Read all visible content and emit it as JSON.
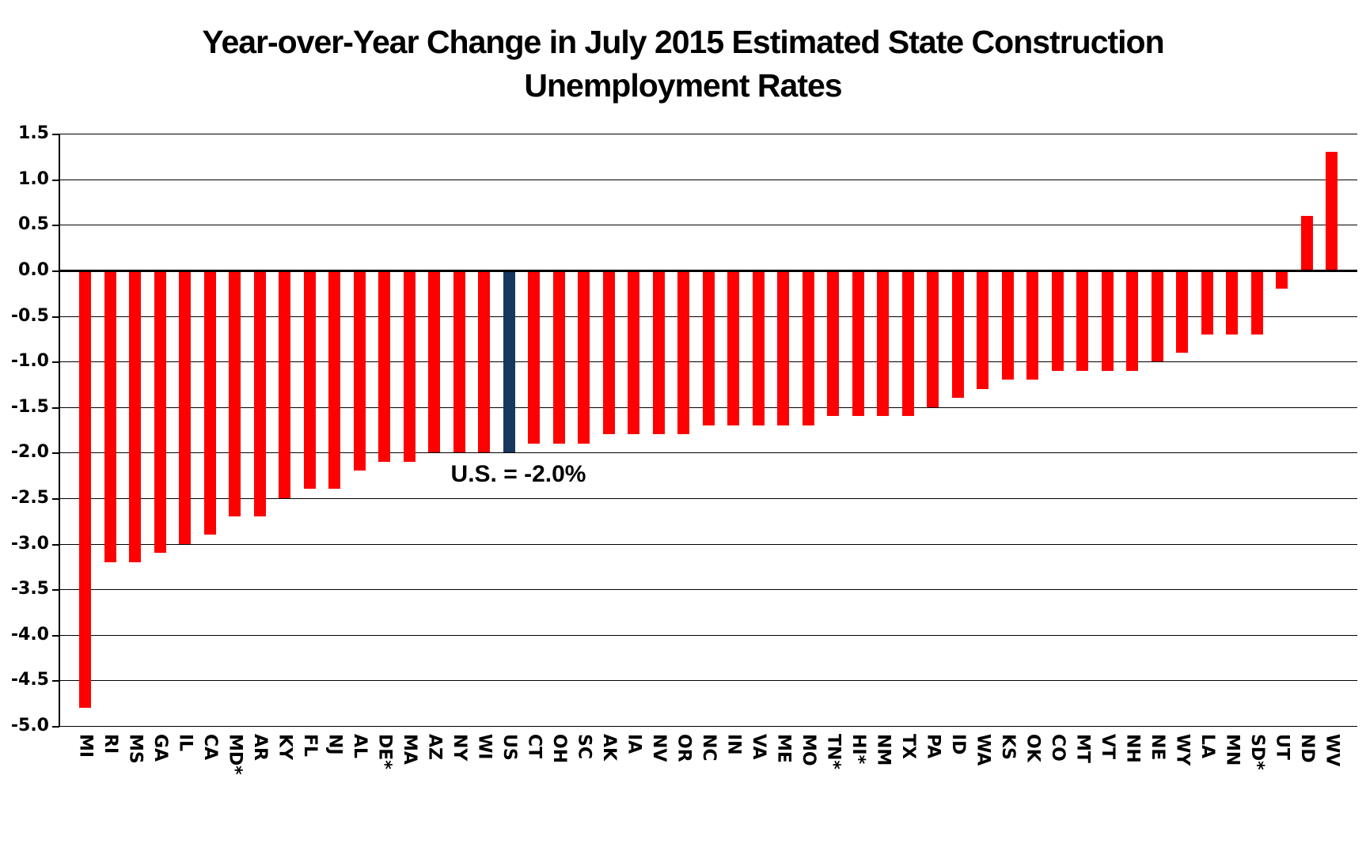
{
  "title": {
    "line1": "Year-over-Year Change in July 2015 Estimated State Construction",
    "line2": "Unemployment Rates"
  },
  "colors": {
    "bar": "#FF0000",
    "highlight_bar": "#17375E",
    "grid": "#000000",
    "axis": "#000000",
    "background": "#FFFFFF",
    "text": "#000000"
  },
  "chart_data": {
    "type": "bar",
    "title": "Year-over-Year Change in July 2015 Estimated State Construction Unemployment Rates",
    "categories": [
      "MI",
      "RI",
      "MS",
      "GA",
      "IL",
      "CA",
      "MD*",
      "AR",
      "KY",
      "FL",
      "NJ",
      "AL",
      "DE*",
      "MA",
      "AZ",
      "NY",
      "WI",
      "US",
      "CT",
      "OH",
      "SC",
      "AK",
      "IA",
      "NV",
      "OR",
      "NC",
      "IN",
      "VA",
      "ME",
      "MO",
      "TN*",
      "HI*",
      "NM",
      "TX",
      "PA",
      "ID",
      "WA",
      "KS",
      "OK",
      "CO",
      "MT",
      "VT",
      "NH",
      "NE",
      "WY",
      "LA",
      "MN",
      "SD*",
      "UT",
      "ND",
      "WV"
    ],
    "values": [
      -4.8,
      -3.2,
      -3.2,
      -3.1,
      -3.0,
      -2.9,
      -2.7,
      -2.7,
      -2.5,
      -2.4,
      -2.4,
      -2.2,
      -2.1,
      -2.1,
      -2.0,
      -2.0,
      -2.0,
      -2.0,
      -1.9,
      -1.9,
      -1.9,
      -1.8,
      -1.8,
      -1.8,
      -1.8,
      -1.7,
      -1.7,
      -1.7,
      -1.7,
      -1.7,
      -1.6,
      -1.6,
      -1.6,
      -1.6,
      -1.5,
      -1.4,
      -1.3,
      -1.2,
      -1.2,
      -1.1,
      -1.1,
      -1.1,
      -1.1,
      -1.0,
      -0.9,
      -0.7,
      -0.7,
      -0.7,
      -0.2,
      0.6,
      1.3
    ],
    "highlight_category": "US",
    "annotation": "U.S. = -2.0%",
    "ylim": [
      -5.0,
      1.5
    ],
    "ytick_step": 0.5,
    "ytick_labels": [
      "1.5",
      "1.0",
      "0.5",
      "0.0",
      "-0.5",
      "-1.0",
      "-1.5",
      "-2.0",
      "-2.5",
      "-3.0",
      "-3.5",
      "-4.0",
      "-4.5",
      "-5.0"
    ],
    "xlabel": "",
    "ylabel": "",
    "grid": true,
    "legend": "none"
  }
}
